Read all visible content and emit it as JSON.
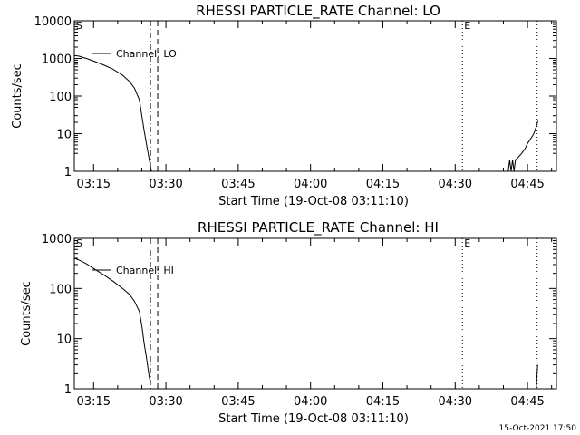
{
  "footer_timestamp": "15-Oct-2021 17:50",
  "chart_data": [
    {
      "type": "line",
      "title": "RHESSI PARTICLE_RATE Channel: LO",
      "xlabel": "Start Time (19-Oct-08 03:11:10)",
      "ylabel": "Counts/sec",
      "yscale": "log",
      "ylim": [
        1,
        10000
      ],
      "xlim_minutes": [
        191,
        291
      ],
      "x_tick_labels": [
        "03:15",
        "03:30",
        "03:45",
        "04:00",
        "04:15",
        "04:30",
        "04:45"
      ],
      "y_tick_labels": [
        "1",
        "10",
        "100",
        "1000",
        "10000"
      ],
      "legend": {
        "label": "Channel: LO",
        "position": "top-left"
      },
      "markers": [
        {
          "label": "S",
          "minute": 191,
          "style": "none"
        },
        {
          "label": "",
          "minute": 206.8,
          "style": "dash-dot"
        },
        {
          "label": "",
          "minute": 208.3,
          "style": "dashed"
        },
        {
          "label": "E",
          "minute": 271.5,
          "style": "dotted"
        },
        {
          "label": "",
          "minute": 287,
          "style": "dotted"
        }
      ],
      "series": [
        {
          "name": "Channel: LO",
          "segments": [
            [
              [
                191.0,
                1200
              ],
              [
                192.0,
                1150
              ],
              [
                193.5,
                1000
              ],
              [
                195.0,
                850
              ],
              [
                197.0,
                680
              ],
              [
                199.0,
                520
              ],
              [
                201.0,
                360
              ],
              [
                202.5,
                240
              ],
              [
                203.5,
                160
              ],
              [
                204.5,
                80
              ],
              [
                205.0,
                30
              ],
              [
                205.5,
                12
              ],
              [
                206.0,
                5
              ],
              [
                206.5,
                2.2
              ],
              [
                207.0,
                1
              ]
            ],
            [
              [
                281.0,
                1
              ],
              [
                281.3,
                2
              ],
              [
                281.6,
                1
              ],
              [
                281.9,
                2
              ],
              [
                282.2,
                1
              ],
              [
                282.5,
                2
              ],
              [
                283.0,
                2.3
              ],
              [
                283.8,
                3
              ],
              [
                284.5,
                4
              ],
              [
                285.0,
                5.5
              ],
              [
                285.7,
                7.5
              ],
              [
                286.3,
                10
              ],
              [
                286.7,
                14
              ],
              [
                287.0,
                18
              ],
              [
                287.2,
                23
              ]
            ]
          ]
        }
      ]
    },
    {
      "type": "line",
      "title": "RHESSI PARTICLE_RATE Channel: HI",
      "xlabel": "Start Time (19-Oct-08 03:11:10)",
      "ylabel": "Counts/sec",
      "yscale": "log",
      "ylim": [
        1,
        1000
      ],
      "xlim_minutes": [
        191,
        291
      ],
      "x_tick_labels": [
        "03:15",
        "03:30",
        "03:45",
        "04:00",
        "04:15",
        "04:30",
        "04:45"
      ],
      "y_tick_labels": [
        "1",
        "10",
        "100",
        "1000"
      ],
      "legend": {
        "label": "Channel: HI",
        "position": "top-left"
      },
      "markers": [
        {
          "label": "S",
          "minute": 191,
          "style": "none"
        },
        {
          "label": "",
          "minute": 206.8,
          "style": "dash-dot"
        },
        {
          "label": "",
          "minute": 208.3,
          "style": "dashed"
        },
        {
          "label": "E",
          "minute": 271.5,
          "style": "dotted"
        },
        {
          "label": "",
          "minute": 287,
          "style": "dotted"
        }
      ],
      "series": [
        {
          "name": "Channel: HI",
          "segments": [
            [
              [
                191.0,
                400
              ],
              [
                192.0,
                370
              ],
              [
                193.5,
                310
              ],
              [
                195.0,
                250
              ],
              [
                197.0,
                190
              ],
              [
                199.0,
                140
              ],
              [
                201.0,
                100
              ],
              [
                202.5,
                75
              ],
              [
                203.5,
                55
              ],
              [
                204.5,
                35
              ],
              [
                205.0,
                18
              ],
              [
                205.5,
                8
              ],
              [
                206.0,
                4
              ],
              [
                206.5,
                1.8
              ],
              [
                206.8,
                1.3
              ]
            ],
            [
              [
                286.8,
                1
              ],
              [
                287.0,
                2
              ],
              [
                287.1,
                3
              ]
            ]
          ]
        }
      ]
    }
  ]
}
